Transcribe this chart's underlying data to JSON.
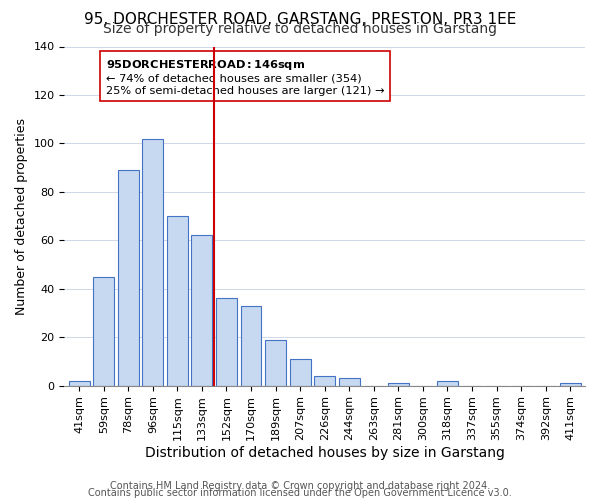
{
  "title1": "95, DORCHESTER ROAD, GARSTANG, PRESTON, PR3 1EE",
  "title2": "Size of property relative to detached houses in Garstang",
  "xlabel": "Distribution of detached houses by size in Garstang",
  "ylabel": "Number of detached properties",
  "bin_labels": [
    "41sqm",
    "59sqm",
    "78sqm",
    "96sqm",
    "115sqm",
    "133sqm",
    "152sqm",
    "170sqm",
    "189sqm",
    "207sqm",
    "226sqm",
    "244sqm",
    "263sqm",
    "281sqm",
    "300sqm",
    "318sqm",
    "337sqm",
    "355sqm",
    "374sqm",
    "392sqm",
    "411sqm"
  ],
  "bar_heights": [
    2,
    45,
    89,
    102,
    70,
    62,
    36,
    33,
    19,
    11,
    4,
    3,
    0,
    1,
    0,
    2,
    0,
    0,
    0,
    0,
    1
  ],
  "bar_color": "#c6d9f1",
  "bar_edge_color": "#4472c4",
  "vline_x": 5.5,
  "vline_color": "#cc0000",
  "ylim": [
    0,
    140
  ],
  "annotation_title": "95 DORCHESTER ROAD: 146sqm",
  "annotation_line1": "← 74% of detached houses are smaller (354)",
  "annotation_line2": "25% of semi-detached houses are larger (121) →",
  "footer1": "Contains HM Land Registry data © Crown copyright and database right 2024.",
  "footer2": "Contains public sector information licensed under the Open Government Licence v3.0.",
  "title1_fontsize": 11,
  "title2_fontsize": 10,
  "xlabel_fontsize": 10,
  "ylabel_fontsize": 9,
  "tick_fontsize": 8,
  "footer_fontsize": 7
}
